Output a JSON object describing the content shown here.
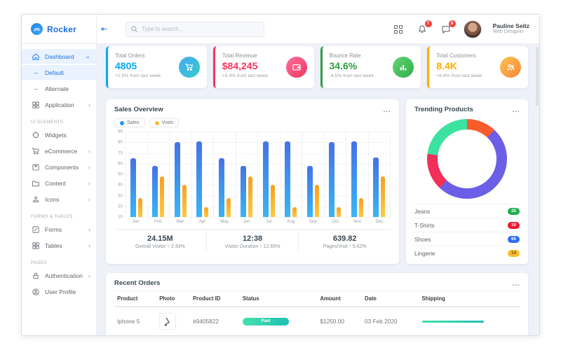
{
  "brand": {
    "name": "Rocker"
  },
  "header": {
    "search_placeholder": "Type to search...",
    "notification_count": "7",
    "message_count": "8",
    "user_name": "Pauline Seitz",
    "user_role": "Web Designer"
  },
  "sidebar": {
    "sections": [
      {
        "label": "",
        "items": [
          {
            "label": "Dashboard",
            "icon": "home-icon",
            "active": true,
            "chevron": "down"
          },
          {
            "label": "Default",
            "icon": "arrow-right-icon",
            "active": true
          },
          {
            "label": "Alternate",
            "icon": "arrow-right-icon"
          },
          {
            "label": "Application",
            "icon": "apps-grid-icon",
            "chevron": "left"
          }
        ]
      },
      {
        "label": "UI ELEMENTS",
        "items": [
          {
            "label": "Widgets",
            "icon": "widgets-icon"
          },
          {
            "label": "eCommerce",
            "icon": "cart-icon",
            "chevron": "left"
          },
          {
            "label": "Components",
            "icon": "components-icon",
            "chevron": "left"
          },
          {
            "label": "Content",
            "icon": "content-icon",
            "chevron": "left"
          },
          {
            "label": "Icons",
            "icon": "stamp-icon",
            "chevron": "left"
          }
        ]
      },
      {
        "label": "FORMS & TABLES",
        "items": [
          {
            "label": "Forms",
            "icon": "forms-icon",
            "chevron": "left"
          },
          {
            "label": "Tables",
            "icon": "tables-icon",
            "chevron": "left"
          }
        ]
      },
      {
        "label": "PAGES",
        "items": [
          {
            "label": "Authentication",
            "icon": "lock-icon",
            "chevron": "left"
          },
          {
            "label": "User Profile",
            "icon": "user-circle-icon"
          }
        ]
      }
    ]
  },
  "stat_cards": [
    {
      "title": "Total Orders",
      "value": "4805",
      "delta": "+2.5% from last week",
      "accent": "#04a9f5",
      "icon": "cart-stat-icon",
      "icon_from": "#49a9f3",
      "icon_to": "#33ccc9"
    },
    {
      "title": "Total Revenue",
      "value": "$84,245",
      "delta": "+5.4% from last week",
      "accent": "#f5365c",
      "icon": "wallet-stat-icon",
      "icon_from": "#f9719b",
      "icon_to": "#f2355f"
    },
    {
      "title": "Bounce Rate",
      "value": "34.6%",
      "delta": "-4.5% from last week",
      "accent": "#2f9e44",
      "icon": "bars-stat-icon",
      "icon_from": "#63d471",
      "icon_to": "#2fae4d"
    },
    {
      "title": "Total Customers",
      "value": "8.4K",
      "delta": "+8.4% from last week",
      "accent": "#ffab00",
      "icon": "users-stat-icon",
      "icon_from": "#ffc14d",
      "icon_to": "#f5883c"
    }
  ],
  "sales_overview": {
    "title": "Sales Overview",
    "chart_data": {
      "type": "bar",
      "categories": [
        "Jan",
        "Feb",
        "Mar",
        "Apr",
        "May",
        "Jun",
        "Jul",
        "Aug",
        "Sep",
        "Oct",
        "Nov",
        "Dec"
      ],
      "series": [
        {
          "name": "Sales",
          "legend_color": "#2196f3",
          "color_top": "#4472e8",
          "color_bottom": "#38b5f6",
          "values": [
            65,
            58,
            80,
            81,
            65,
            58,
            81,
            81,
            58,
            80,
            81,
            66
          ]
        },
        {
          "name": "Visits",
          "legend_color": "#fbbc34",
          "color_top": "#f79f22",
          "color_bottom": "#ffc93d",
          "values": [
            28,
            48,
            40,
            19,
            28,
            48,
            40,
            19,
            40,
            19,
            28,
            48
          ]
        }
      ],
      "ylim": [
        10,
        90
      ],
      "yticks": [
        90,
        80,
        70,
        60,
        50,
        40,
        30,
        20,
        10
      ],
      "grid": true,
      "legend_position": "top-left"
    },
    "summary": [
      {
        "value": "24.15M",
        "label": "Overall Visitor",
        "arrow": "up",
        "delta": "2.43%"
      },
      {
        "value": "12:38",
        "label": "Visitor Duration",
        "arrow": "up",
        "delta": "12.65%"
      },
      {
        "value": "639.82",
        "label": "Pages/Visit",
        "arrow": "up",
        "delta": "5.62%"
      }
    ]
  },
  "trending_products": {
    "title": "Trending Products",
    "chart_data": {
      "type": "donut",
      "start_angle_deg": 0,
      "segments": [
        {
          "label": "Lingerie",
          "percent": 12,
          "color": "#fa5b2d"
        },
        {
          "label": "Shoes",
          "percent": 50,
          "color": "#6a5fe6"
        },
        {
          "label": "T-Shirts",
          "percent": 15,
          "color": "#f22f58"
        },
        {
          "label": "Jeans",
          "percent": 23,
          "color": "#3ce2a0"
        }
      ]
    },
    "items": [
      {
        "label": "Jeans",
        "count": "25",
        "badge_bg": "#1faf4b",
        "badge_text": "#ffffff"
      },
      {
        "label": "T-Shirts",
        "count": "10",
        "badge_bg": "#f0142f",
        "badge_text": "#ffffff"
      },
      {
        "label": "Shoes",
        "count": "65",
        "badge_bg": "#2e6bf6",
        "badge_text": "#ffffff"
      },
      {
        "label": "Lingerie",
        "count": "14",
        "badge_bg": "#fbbc2c",
        "badge_text": "#6d5510"
      }
    ]
  },
  "recent_orders": {
    "title": "Recent Orders",
    "columns": [
      "Product",
      "Photo",
      "Product ID",
      "Status",
      "Amount",
      "Date",
      "Shipping"
    ],
    "rows": [
      {
        "product": "Iphone 5",
        "product_id": "#9405822",
        "status": "Paid",
        "amount": "$1250.00",
        "date": "03 Feb 2020",
        "shipping_percent": 100
      }
    ]
  }
}
